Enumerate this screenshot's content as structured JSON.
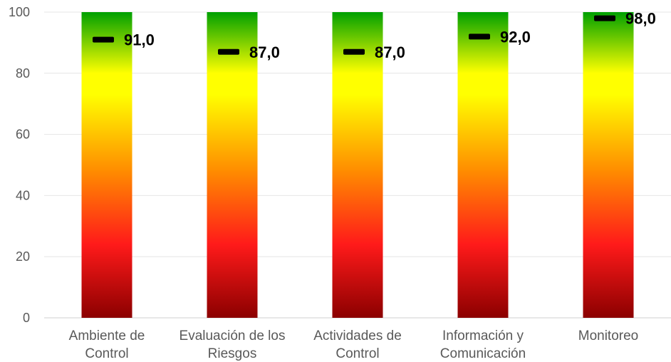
{
  "chart_data": {
    "type": "bar",
    "categories": [
      [
        "Ambiente de",
        "Control"
      ],
      [
        "Evaluación de los",
        "Riesgos"
      ],
      [
        "Actividades de",
        "Control"
      ],
      [
        "Información y",
        "Comunicación"
      ],
      [
        "Monitoreo"
      ]
    ],
    "bar_values": [
      100,
      100,
      100,
      100,
      100
    ],
    "series": [
      {
        "values": [
          91.0,
          87.0,
          87.0,
          92.0,
          98.0
        ],
        "labels": [
          "91,0",
          "87,0",
          "87,0",
          "92,0",
          "98,0"
        ]
      }
    ],
    "ylim": [
      0,
      100
    ],
    "yticks": [
      0,
      20,
      40,
      60,
      80,
      100
    ],
    "grid": true,
    "legend": "none",
    "colors": {
      "gradient_top": "#00a000",
      "gradient_yellow": "#ffff00",
      "gradient_orange": "#ff8c00",
      "gradient_red": "#ff1a1a",
      "gradient_bottom": "#8b0000",
      "marker": "#000000",
      "grid": "#e6e6e6",
      "axis": "#d0d0d0"
    }
  }
}
